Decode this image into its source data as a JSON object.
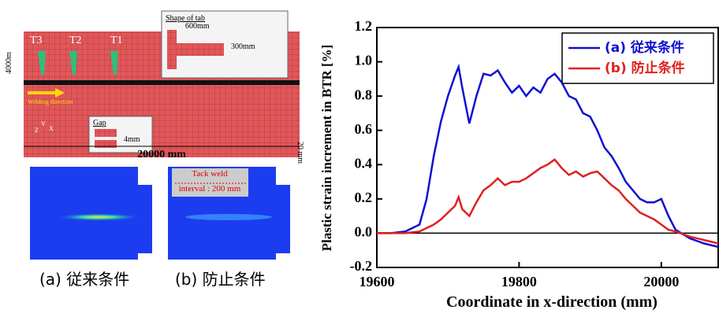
{
  "diagram": {
    "tab_title": "Shape of tab",
    "tab_width": "600mm",
    "tab_height": "300mm",
    "plate_width_label": "4000m",
    "tacks": [
      "T3",
      "T2",
      "T1"
    ],
    "welding_direction": "Welding direction",
    "gap_title": "Gap",
    "gap_size": "4mm",
    "thickness": "20 mm",
    "length": "20000 mm",
    "axes": [
      "Y",
      "Z",
      "X"
    ],
    "tack_weld": "Tack weld",
    "tack_interval": "interval : 200 mm",
    "captions": [
      "(a) 従来条件",
      "(b) 防止条件"
    ]
  },
  "chart_data": {
    "type": "line",
    "xlabel": "Coordinate in x-direction (mm)",
    "ylabel": "Plastic strain increment in BTR [%]",
    "xlim": [
      19600,
      20080
    ],
    "xticks": [
      19600,
      19800,
      20000
    ],
    "ylim": [
      -0.2,
      1.2
    ],
    "yticks": [
      -0.2,
      {
        "value": 0,
        "label": "0.0"
      },
      0.2,
      0.4,
      0.6,
      0.8,
      {
        "value": 1,
        "label": "1.0"
      },
      1.2
    ],
    "grid": false,
    "legend": "upper right",
    "x": [
      19600,
      19620,
      19640,
      19660,
      19670,
      19680,
      19690,
      19700,
      19710,
      19715,
      19720,
      19730,
      19740,
      19750,
      19760,
      19770,
      19780,
      19790,
      19800,
      19810,
      19820,
      19830,
      19840,
      19850,
      19860,
      19870,
      19880,
      19890,
      19900,
      19910,
      19920,
      19930,
      19940,
      19950,
      19960,
      19970,
      19980,
      19990,
      20000,
      20010,
      20020,
      20040,
      20060,
      20080
    ],
    "series": [
      {
        "name": "(a) 従来条件",
        "color": "#1010d0",
        "values": [
          0,
          0,
          0.01,
          0.05,
          0.2,
          0.45,
          0.65,
          0.8,
          0.92,
          0.97,
          0.85,
          0.64,
          0.8,
          0.93,
          0.92,
          0.95,
          0.88,
          0.82,
          0.86,
          0.8,
          0.85,
          0.82,
          0.9,
          0.93,
          0.88,
          0.8,
          0.78,
          0.7,
          0.68,
          0.6,
          0.5,
          0.45,
          0.38,
          0.3,
          0.25,
          0.2,
          0.18,
          0.18,
          0.2,
          0.1,
          0.02,
          -0.03,
          -0.06,
          -0.08
        ]
      },
      {
        "name": "(b) 防止条件",
        "color": "#e02020",
        "values": [
          0,
          0,
          0,
          0.01,
          0.03,
          0.05,
          0.08,
          0.12,
          0.16,
          0.21,
          0.14,
          0.1,
          0.18,
          0.25,
          0.28,
          0.32,
          0.28,
          0.3,
          0.3,
          0.32,
          0.35,
          0.38,
          0.4,
          0.43,
          0.38,
          0.34,
          0.36,
          0.33,
          0.35,
          0.36,
          0.32,
          0.28,
          0.25,
          0.2,
          0.16,
          0.12,
          0.1,
          0.08,
          0.05,
          0.02,
          0.01,
          -0.02,
          -0.04,
          -0.06
        ]
      }
    ]
  }
}
